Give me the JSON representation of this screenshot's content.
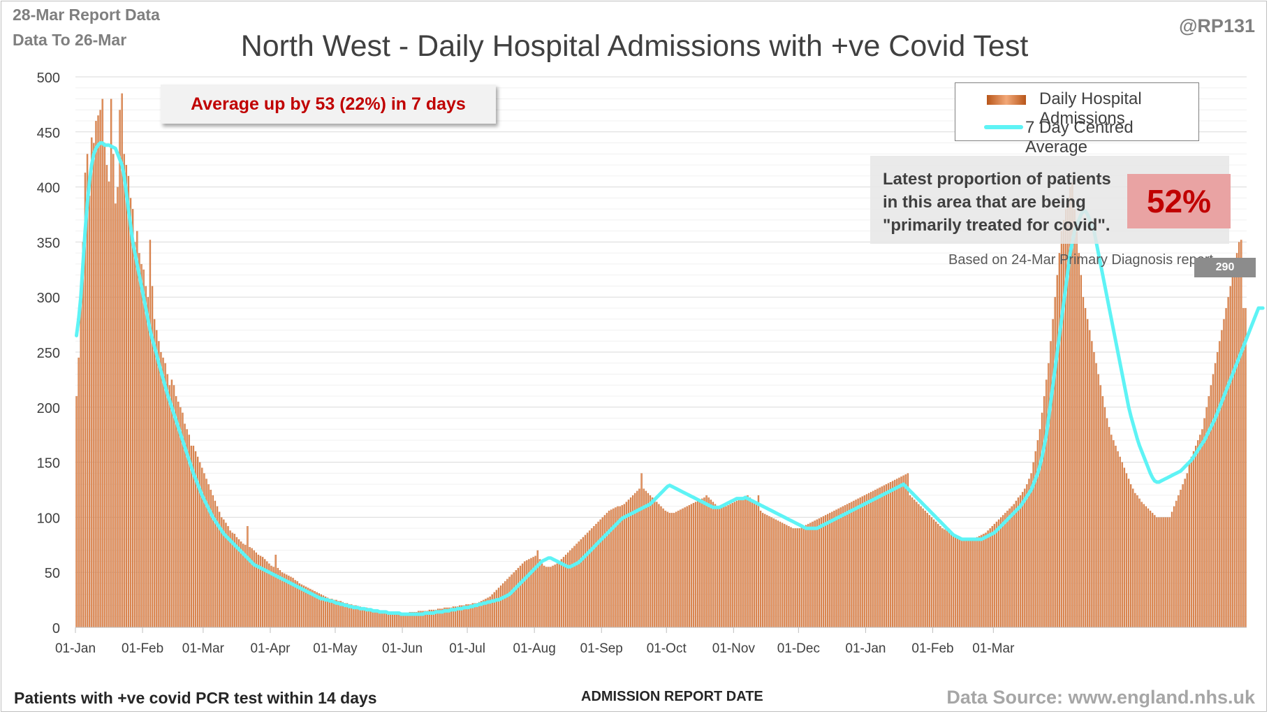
{
  "header": {
    "report_line1": "28-Mar Report Data",
    "report_line2": "Data To 26-Mar",
    "handle": "@RP131",
    "title": "North West - Daily Hospital Admissions with +ve Covid Test"
  },
  "legend": {
    "bars_label": "Daily Hospital Admissions",
    "line_label": "7 Day Centred Average"
  },
  "callout": {
    "text": "Average up by 53 (22%) in 7 days"
  },
  "proportion": {
    "text_line1": "Latest proportion of patients",
    "text_line2": "in this area that are being",
    "text_line3": "\"primarily treated for covid\".",
    "value": "52%",
    "note": "Based on 24-Mar Primary Diagnosis report"
  },
  "last_value_label": "290",
  "footer": {
    "left": "Patients with +ve covid PCR test within 14 days",
    "center": "ADMISSION REPORT DATE",
    "right": "Data Source: www.england.nhs.uk"
  },
  "colors": {
    "bar_dark": "#b8561a",
    "bar_light": "#f2a878",
    "avg_line": "#5ef3f5",
    "title_text": "#404040",
    "callout_text": "#c00000"
  },
  "chart_data": {
    "type": "bar",
    "title": "North West - Daily Hospital Admissions with +ve Covid Test",
    "xlabel": "ADMISSION REPORT DATE",
    "ylabel": "",
    "ylim": [
      0,
      500
    ],
    "yticks": [
      0,
      50,
      100,
      150,
      200,
      250,
      300,
      350,
      400,
      450,
      500
    ],
    "grid": true,
    "legend_position": "top-right",
    "x_start": "01-Jan",
    "x_end": "26-Mar",
    "xtick_labels": [
      "01-Jan",
      "01-Feb",
      "01-Mar",
      "01-Apr",
      "01-May",
      "01-Jun",
      "01-Jul",
      "01-Aug",
      "01-Sep",
      "01-Oct",
      "01-Nov",
      "01-Dec",
      "01-Jan",
      "01-Feb",
      "01-Mar"
    ],
    "series": [
      {
        "name": "Daily Hospital Admissions",
        "kind": "bar",
        "values": [
          210,
          245,
          300,
          350,
          413,
          430,
          392,
          445,
          440,
          460,
          465,
          470,
          480,
          440,
          420,
          405,
          480,
          430,
          385,
          400,
          470,
          485,
          430,
          420,
          410,
          390,
          380,
          350,
          360,
          340,
          330,
          325,
          310,
          300,
          352,
          310,
          280,
          270,
          260,
          250,
          245,
          240,
          230,
          220,
          225,
          220,
          210,
          205,
          200,
          195,
          185,
          180,
          175,
          165,
          165,
          160,
          155,
          150,
          145,
          140,
          135,
          130,
          125,
          120,
          115,
          110,
          105,
          100,
          98,
          95,
          92,
          88,
          86,
          85,
          82,
          80,
          78,
          76,
          75,
          92,
          73,
          72,
          70,
          68,
          66,
          65,
          64,
          62,
          60,
          58,
          56,
          55,
          66,
          54,
          52,
          50,
          49,
          48,
          47,
          46,
          45,
          43,
          42,
          40,
          39,
          38,
          37,
          36,
          35,
          34,
          33,
          32,
          31,
          30,
          29,
          28,
          27,
          26,
          26,
          25,
          25,
          24,
          24,
          23,
          22,
          22,
          21,
          21,
          20,
          20,
          19,
          19,
          18,
          18,
          18,
          17,
          17,
          16,
          16,
          16,
          15,
          15,
          15,
          15,
          14,
          14,
          14,
          14,
          14,
          13,
          13,
          13,
          13,
          13,
          14,
          14,
          14,
          14,
          15,
          15,
          15,
          15,
          15,
          16,
          16,
          16,
          16,
          17,
          17,
          17,
          18,
          18,
          18,
          18,
          19,
          19,
          19,
          20,
          20,
          20,
          21,
          21,
          21,
          22,
          22,
          22,
          23,
          24,
          25,
          26,
          27,
          28,
          30,
          32,
          34,
          36,
          38,
          40,
          42,
          44,
          46,
          48,
          50,
          52,
          54,
          56,
          58,
          60,
          61,
          62,
          63,
          64,
          65,
          70,
          62,
          58,
          56,
          55,
          55,
          55,
          56,
          57,
          58,
          60,
          62,
          64,
          66,
          68,
          70,
          72,
          74,
          76,
          78,
          80,
          82,
          84,
          86,
          88,
          90,
          92,
          94,
          96,
          98,
          100,
          102,
          104,
          106,
          107,
          108,
          109,
          110,
          110,
          111,
          112,
          114,
          116,
          118,
          120,
          122,
          124,
          126,
          140,
          126,
          124,
          122,
          120,
          118,
          116,
          114,
          112,
          110,
          108,
          106,
          105,
          104,
          104,
          104,
          105,
          106,
          107,
          108,
          109,
          110,
          111,
          112,
          113,
          114,
          115,
          116,
          117,
          118,
          120,
          118,
          116,
          114,
          112,
          110,
          110,
          110,
          110,
          110,
          111,
          112,
          113,
          114,
          115,
          116,
          117,
          118,
          119,
          120,
          118,
          116,
          114,
          112,
          120,
          106,
          104,
          103,
          102,
          101,
          100,
          99,
          98,
          97,
          96,
          95,
          94,
          93,
          92,
          91,
          90,
          90,
          90,
          90,
          91,
          92,
          93,
          94,
          95,
          96,
          97,
          98,
          99,
          100,
          101,
          102,
          103,
          104,
          105,
          106,
          107,
          108,
          109,
          110,
          111,
          112,
          113,
          114,
          115,
          116,
          117,
          118,
          119,
          120,
          121,
          122,
          123,
          124,
          125,
          126,
          127,
          128,
          129,
          130,
          131,
          132,
          133,
          134,
          135,
          136,
          137,
          138,
          139,
          140,
          120,
          118,
          116,
          114,
          112,
          110,
          108,
          106,
          104,
          102,
          100,
          98,
          96,
          94,
          92,
          90,
          89,
          88,
          87,
          86,
          85,
          84,
          83,
          82,
          81,
          80,
          80,
          80,
          80,
          80,
          81,
          82,
          83,
          84,
          85,
          86,
          88,
          90,
          92,
          94,
          96,
          98,
          100,
          102,
          104,
          106,
          108,
          110,
          112,
          115,
          118,
          120,
          123,
          126,
          130,
          135,
          140,
          150,
          160,
          170,
          180,
          195,
          210,
          225,
          240,
          260,
          280,
          300,
          320,
          340,
          360,
          370,
          380,
          390,
          400,
          404,
          380,
          360,
          340,
          320,
          300,
          290,
          280,
          270,
          260,
          250,
          240,
          230,
          220,
          210,
          200,
          190,
          182,
          175,
          170,
          165,
          160,
          155,
          150,
          145,
          140,
          135,
          130,
          126,
          122,
          120,
          117,
          114,
          112,
          110,
          108,
          106,
          104,
          102,
          100,
          100,
          100,
          100,
          100,
          100,
          100,
          105,
          110,
          115,
          120,
          125,
          130,
          135,
          140,
          150,
          155,
          160,
          165,
          170,
          175,
          180,
          190,
          200,
          210,
          220,
          230,
          240,
          250,
          260,
          270,
          280,
          290,
          300,
          310,
          320,
          330,
          340,
          350,
          352,
          290,
          290
        ]
      },
      {
        "name": "7 Day Centred Average",
        "kind": "line",
        "values": [
          265,
          280,
          300,
          330,
          360,
          385,
          405,
          420,
          430,
          435,
          438,
          440,
          440,
          438,
          438,
          438,
          437,
          436,
          435,
          430,
          425,
          420,
          410,
          395,
          380,
          365,
          350,
          340,
          330,
          320,
          310,
          300,
          290,
          280,
          270,
          262,
          255,
          248,
          240,
          233,
          226,
          219,
          212,
          206,
          200,
          194,
          188,
          182,
          176,
          170,
          164,
          158,
          152,
          146,
          140,
          135,
          130,
          125,
          120,
          116,
          112,
          108,
          104,
          100,
          97,
          94,
          91,
          88,
          85,
          83,
          81,
          79,
          77,
          75,
          73,
          71,
          69,
          67,
          65,
          63,
          61,
          59,
          57,
          56,
          55,
          54,
          53,
          52,
          51,
          50,
          49,
          48,
          47,
          46,
          45,
          44,
          43,
          42,
          41,
          40,
          39,
          38,
          37,
          36,
          35,
          34,
          33,
          32,
          31,
          30,
          29,
          28,
          27,
          26,
          26,
          25,
          25,
          24,
          24,
          23,
          22,
          22,
          21,
          21,
          20,
          20,
          19,
          19,
          18,
          18,
          18,
          17,
          17,
          17,
          16,
          16,
          16,
          15,
          15,
          15,
          14,
          14,
          14,
          14,
          13,
          13,
          13,
          13,
          13,
          13,
          12,
          12,
          12,
          12,
          12,
          12,
          12,
          12,
          12,
          12,
          12,
          13,
          13,
          13,
          13,
          13,
          14,
          14,
          14,
          14,
          15,
          15,
          15,
          16,
          16,
          16,
          17,
          17,
          17,
          18,
          18,
          18,
          19,
          19,
          20,
          20,
          21,
          21,
          22,
          22,
          23,
          23,
          24,
          24,
          25,
          25,
          26,
          27,
          28,
          29,
          30,
          32,
          34,
          36,
          38,
          40,
          42,
          44,
          46,
          48,
          50,
          52,
          54,
          56,
          58,
          60,
          61,
          62,
          63,
          63,
          62,
          61,
          60,
          59,
          58,
          57,
          56,
          55,
          55,
          56,
          57,
          58,
          59,
          61,
          63,
          65,
          67,
          69,
          71,
          73,
          75,
          77,
          79,
          81,
          83,
          85,
          87,
          89,
          91,
          93,
          95,
          97,
          99,
          100,
          101,
          102,
          103,
          104,
          105,
          106,
          107,
          108,
          109,
          110,
          111,
          112,
          114,
          116,
          118,
          120,
          122,
          124,
          126,
          128,
          129,
          128,
          127,
          126,
          125,
          124,
          123,
          122,
          121,
          120,
          119,
          118,
          117,
          116,
          115,
          114,
          113,
          112,
          111,
          110,
          109,
          109,
          109,
          109,
          110,
          111,
          112,
          113,
          114,
          115,
          116,
          117,
          117,
          117,
          117,
          118,
          117,
          116,
          115,
          114,
          113,
          112,
          111,
          110,
          109,
          108,
          107,
          106,
          105,
          104,
          103,
          102,
          101,
          100,
          99,
          98,
          97,
          96,
          95,
          94,
          93,
          92,
          91,
          90,
          90,
          90,
          90,
          90,
          90,
          91,
          92,
          93,
          94,
          95,
          96,
          97,
          98,
          99,
          100,
          101,
          102,
          103,
          104,
          105,
          106,
          107,
          108,
          109,
          110,
          111,
          112,
          113,
          114,
          115,
          116,
          117,
          118,
          119,
          120,
          121,
          122,
          123,
          124,
          125,
          126,
          127,
          128,
          129,
          130,
          128,
          126,
          124,
          122,
          120,
          118,
          116,
          114,
          112,
          110,
          108,
          106,
          104,
          102,
          100,
          98,
          96,
          94,
          92,
          90,
          88,
          86,
          84,
          83,
          82,
          81,
          80,
          80,
          80,
          80,
          80,
          80,
          80,
          80,
          80,
          80,
          81,
          82,
          83,
          84,
          85,
          86,
          88,
          90,
          92,
          94,
          96,
          98,
          100,
          102,
          104,
          106,
          108,
          110,
          113,
          116,
          119,
          122,
          125,
          130,
          135,
          140,
          147,
          155,
          165,
          175,
          190,
          205,
          220,
          235,
          250,
          265,
          280,
          295,
          310,
          325,
          340,
          350,
          360,
          365,
          370,
          375,
          378,
          378,
          375,
          370,
          365,
          360,
          350,
          340,
          330,
          320,
          310,
          300,
          290,
          280,
          270,
          260,
          250,
          240,
          230,
          220,
          210,
          200,
          192,
          185,
          178,
          171,
          165,
          160,
          155,
          150,
          145,
          140,
          136,
          133,
          132,
          132,
          133,
          134,
          135,
          136,
          137,
          138,
          139,
          140,
          141,
          142,
          144,
          146,
          148,
          150,
          152,
          155,
          158,
          161,
          164,
          167,
          170,
          174,
          178,
          182,
          186,
          190,
          195,
          200,
          205,
          210,
          215,
          220,
          225,
          230,
          235,
          240,
          245,
          250,
          255,
          260,
          265,
          270,
          275,
          280,
          285,
          290,
          290,
          290
        ]
      }
    ]
  }
}
